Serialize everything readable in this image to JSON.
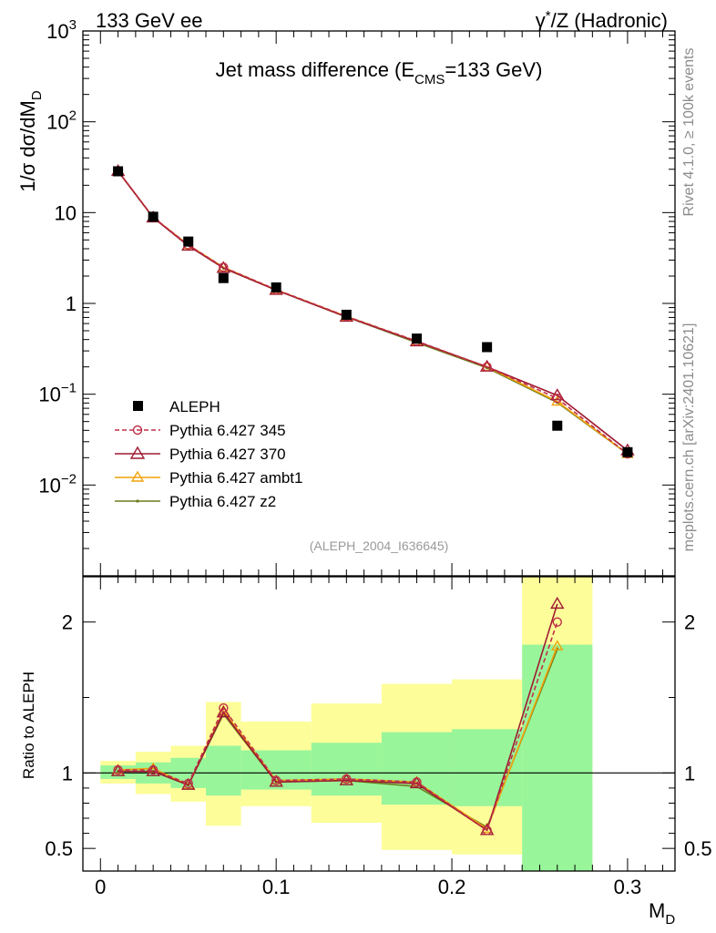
{
  "header": {
    "left": "133 GeV ee",
    "right_prefix": "γ",
    "right_sup": "*",
    "right_suffix": "/Z (Hadronic)"
  },
  "side_labels": {
    "rivet": "Rivet 4.1.0, ≥ 100k events",
    "mcplots": "mcplots.cern.ch [arXiv:2401.10621]"
  },
  "chart_data": [
    {
      "type": "scatter",
      "title_main": "Jet mass difference (E",
      "title_sub": "CMS",
      "title_end": "=133 GeV)",
      "watermark": "(ALEPH_2004_I636645)",
      "ylabel_prefix": "1/σ  dσ/dM",
      "ylabel_sub": "D",
      "yscale": "log",
      "ylim": [
        0.001,
        1000
      ],
      "y_tick_labels": [
        {
          "value": 1000,
          "base": "10",
          "exp": "3"
        },
        {
          "value": 100,
          "base": "10",
          "exp": "2"
        },
        {
          "value": 10,
          "base": "10",
          "exp": ""
        },
        {
          "value": 1,
          "base": "1",
          "exp": ""
        },
        {
          "value": 0.1,
          "base": "10",
          "exp": "−1"
        },
        {
          "value": 0.01,
          "base": "10",
          "exp": "−2"
        }
      ],
      "data_series": {
        "name": "ALEPH",
        "x": [
          0.01,
          0.03,
          0.05,
          0.07,
          0.1,
          0.14,
          0.18,
          0.22,
          0.26,
          0.3
        ],
        "y": [
          28.5,
          9.0,
          4.8,
          1.9,
          1.5,
          0.75,
          0.41,
          0.33,
          0.045,
          0.023
        ]
      },
      "series": [
        {
          "name": "Pythia 6.427 345",
          "color": "#c0304a",
          "dash": true,
          "marker": "circle",
          "y": [
            28.8,
            8.9,
            4.4,
            2.5,
            1.42,
            0.72,
            0.385,
            0.2,
            0.09,
            0.022
          ]
        },
        {
          "name": "Pythia 6.427 370",
          "color": "#9e1b32",
          "dash": false,
          "marker": "triangle",
          "y": [
            28.6,
            8.8,
            4.3,
            2.45,
            1.4,
            0.71,
            0.38,
            0.2,
            0.097,
            0.024
          ]
        },
        {
          "name": "Pythia 6.427 ambt1",
          "color": "#f0a30a",
          "dash": false,
          "marker": "triangle",
          "y": [
            28.7,
            8.85,
            4.4,
            2.5,
            1.41,
            0.72,
            0.38,
            0.2,
            0.083,
            0.022
          ]
        },
        {
          "name": "Pythia 6.427 z2",
          "color": "#6b7a1c",
          "dash": false,
          "marker": "dot",
          "y": [
            28.5,
            8.8,
            4.4,
            2.45,
            1.4,
            0.71,
            0.37,
            0.195,
            0.081,
            0.022
          ]
        }
      ]
    },
    {
      "type": "scatter",
      "ylabel": "Ratio to ALEPH",
      "xlabel_prefix": "M",
      "xlabel_sub": "D",
      "xlim": [
        -0.01,
        0.327
      ],
      "ylim": [
        0.35,
        2.3
      ],
      "x_ticks": [
        0,
        0.1,
        0.2,
        0.3
      ],
      "x_tick_labels": [
        "0",
        "0.1",
        "0.2",
        "0.3"
      ],
      "y_ticks": [
        0.5,
        1,
        2
      ],
      "y_tick_labels": [
        "0.5",
        "1",
        "2"
      ],
      "bands": [
        {
          "x0": 0.0,
          "x1": 0.02,
          "g_lo": 0.96,
          "g_hi": 1.05,
          "y_lo": 0.93,
          "y_hi": 1.08
        },
        {
          "x0": 0.02,
          "x1": 0.04,
          "g_lo": 0.93,
          "g_hi": 1.07,
          "y_lo": 0.86,
          "y_hi": 1.14
        },
        {
          "x0": 0.04,
          "x1": 0.06,
          "g_lo": 0.9,
          "g_hi": 1.1,
          "y_lo": 0.81,
          "y_hi": 1.18
        },
        {
          "x0": 0.06,
          "x1": 0.08,
          "g_lo": 0.85,
          "g_hi": 1.18,
          "y_lo": 0.65,
          "y_hi": 1.47
        },
        {
          "x0": 0.08,
          "x1": 0.12,
          "g_lo": 0.89,
          "g_hi": 1.15,
          "y_lo": 0.78,
          "y_hi": 1.34
        },
        {
          "x0": 0.12,
          "x1": 0.16,
          "g_lo": 0.85,
          "g_hi": 1.2,
          "y_lo": 0.67,
          "y_hi": 1.46
        },
        {
          "x0": 0.16,
          "x1": 0.2,
          "g_lo": 0.79,
          "g_hi": 1.27,
          "y_lo": 0.49,
          "y_hi": 1.59
        },
        {
          "x0": 0.2,
          "x1": 0.24,
          "g_lo": 0.78,
          "g_hi": 1.29,
          "y_lo": 0.46,
          "y_hi": 1.62
        },
        {
          "x0": 0.24,
          "x1": 0.28,
          "g_lo": 0.35,
          "g_hi": 1.85,
          "y_lo": 0.35,
          "y_hi": 2.3
        }
      ],
      "x": [
        0.01,
        0.03,
        0.05,
        0.07,
        0.1,
        0.14,
        0.18,
        0.22,
        0.26
      ],
      "series": [
        {
          "name": "Pythia 6.427 345",
          "color": "#c0304a",
          "dash": true,
          "marker": "circle",
          "y": [
            1.02,
            1.02,
            0.93,
            1.43,
            0.95,
            0.96,
            0.94,
            0.62,
            2.0
          ]
        },
        {
          "name": "Pythia 6.427 370",
          "color": "#9e1b32",
          "dash": false,
          "marker": "triangle",
          "y": [
            1.01,
            1.01,
            0.92,
            1.4,
            0.94,
            0.95,
            0.93,
            0.62,
            2.12
          ]
        },
        {
          "name": "Pythia 6.427 ambt1",
          "color": "#f0a30a",
          "dash": false,
          "marker": "triangle",
          "y": [
            1.02,
            1.03,
            0.92,
            1.41,
            0.95,
            0.96,
            0.94,
            0.63,
            1.84
          ]
        },
        {
          "name": "Pythia 6.427 z2",
          "color": "#6b7a1c",
          "dash": false,
          "marker": "dot",
          "y": [
            1.01,
            1.01,
            0.92,
            1.39,
            0.94,
            0.95,
            0.91,
            0.64,
            1.82
          ]
        }
      ]
    }
  ]
}
